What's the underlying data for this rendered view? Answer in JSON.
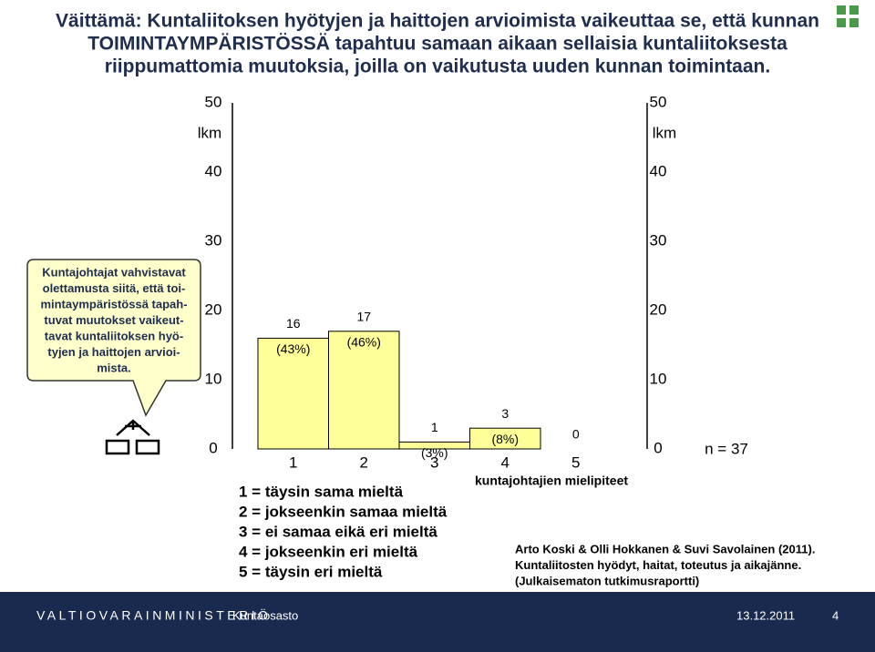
{
  "title_lines": [
    "Väittämä: Kuntaliitoksen hyötyjen ja haittojen arvioimista vaikeuttaa se, että kunnan",
    "TOIMINTAYMPÄRISTÖSSÄ tapahtuu samaan aikaan sellaisia kuntaliitoksesta",
    "riippumattomia muutoksia, joilla on vaikutusta uuden kunnan toimintaan."
  ],
  "callout_lines": [
    "Kuntajohtajat vahvistavat",
    "olettamusta siitä, että toi-",
    "mintaympäristössä tapah-",
    "tuvat muutokset vaikeut-",
    "tavat kuntaliitoksen hyö-",
    "tyjen ja haittojen arvioi-",
    "mista."
  ],
  "chart_data": {
    "type": "bar",
    "categories": [
      "1",
      "2",
      "3",
      "4",
      "5"
    ],
    "values": [
      16,
      17,
      1,
      3,
      0
    ],
    "percent_labels": [
      "(43%)",
      "(46%)",
      "(3%)",
      "(8%)",
      null
    ],
    "color": "#ffff99",
    "x_label": "kuntajohtajien mielipiteet",
    "y_label": "lkm",
    "y2_label": "lkm",
    "ylim": [
      0,
      50
    ],
    "yticks": [
      0,
      10,
      20,
      30,
      40,
      50
    ],
    "y2lim": [
      0,
      50
    ],
    "y2ticks": [
      0,
      10,
      20,
      30,
      40,
      50
    ],
    "n_label": "n = 37"
  },
  "legend_lines": [
    "1 = täysin sama mieltä",
    "2 = jokseenkin samaa mieltä",
    "3 = ei samaa eikä eri mieltä",
    "4 = jokseenkin eri mieltä",
    "5 = täysin eri mieltä"
  ],
  "source_lines": [
    "Arto Koski & Olli Hokkanen & Suvi Savolainen (2011).",
    "Kuntaliitosten hyödyt, haitat, toteutus ja aikajänne.",
    "(Julkaisematon tutkimusraportti)"
  ],
  "footer": {
    "organization": "VALTIOVARAINMINISTERIÖ",
    "department": "Kuntaosasto",
    "date": "13.12.2011",
    "page": "4"
  }
}
